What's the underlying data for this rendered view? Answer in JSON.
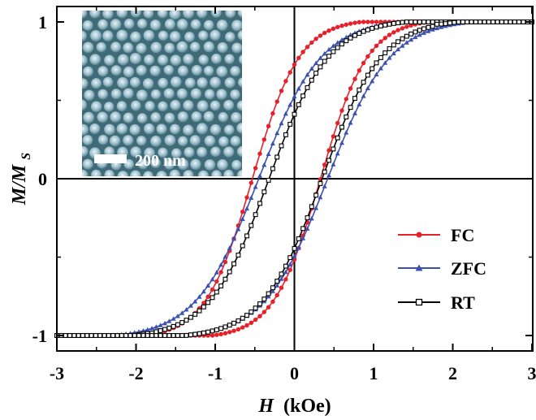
{
  "chart_data": {
    "type": "line",
    "xlabel": "H",
    "xlabel_unit": "(kOe)",
    "ylabel": "M/M",
    "ylabel_sub": "S",
    "xlim": [
      -3,
      3
    ],
    "ylim": [
      -1.05,
      1.05
    ],
    "x_ticks": [
      -3,
      -2,
      -1,
      0,
      1,
      2,
      3
    ],
    "x_tick_labels": [
      "-3",
      "-2",
      "-1",
      "0",
      "1",
      "2",
      "3"
    ],
    "y_ticks": [
      -1,
      0,
      1
    ],
    "y_tick_labels": [
      "-1",
      "0",
      "1"
    ],
    "zero_lines": true,
    "legend_placement": "right",
    "inset": {
      "scale_bar_label": "200 nm"
    },
    "series": [
      {
        "name": "FC",
        "color": "#e8202a",
        "marker": "circle",
        "coercivity_descending": -0.53,
        "coercivity_ascending": 0.33,
        "remanence": 0.62,
        "saturation_field": 1.95,
        "x": [
          -3.0,
          -2.0,
          -1.5,
          -1.0,
          -0.6,
          0.0,
          0.3,
          0.5,
          1.0,
          1.5,
          2.0,
          3.0
        ],
        "y_descending": [
          -0.98,
          -0.89,
          -0.74,
          -0.42,
          -0.05,
          0.62,
          0.8,
          0.87,
          0.95,
          0.985,
          1.0,
          1.0
        ],
        "y_ascending": [
          -1.0,
          -0.96,
          -0.9,
          -0.74,
          -0.55,
          -0.37,
          0.0,
          0.17,
          0.56,
          0.84,
          0.97,
          1.0
        ]
      },
      {
        "name": "ZFC",
        "color": "#3a50b4",
        "marker": "triangle",
        "coercivity_descending": -0.45,
        "coercivity_ascending": 0.42,
        "remanence": 0.5,
        "saturation_field": 2.15,
        "x": [
          -3.0,
          -2.0,
          -1.5,
          -1.0,
          -0.6,
          0.0,
          0.3,
          0.5,
          1.0,
          1.5,
          2.0,
          3.0
        ],
        "y_descending": [
          -0.99,
          -0.9,
          -0.77,
          -0.48,
          -0.13,
          0.5,
          0.72,
          0.82,
          0.93,
          0.97,
          0.99,
          1.0
        ],
        "y_ascending": [
          -1.0,
          -0.97,
          -0.92,
          -0.78,
          -0.6,
          -0.44,
          -0.08,
          0.12,
          0.5,
          0.79,
          0.95,
          1.0
        ]
      },
      {
        "name": "RT",
        "color": "#000000",
        "marker": "square-open",
        "coercivity_descending": -0.32,
        "coercivity_ascending": 0.35,
        "remanence": 0.42,
        "saturation_field": 1.75,
        "x": [
          -3.0,
          -2.0,
          -1.5,
          -1.0,
          -0.6,
          0.0,
          0.3,
          0.5,
          1.0,
          1.5,
          2.0,
          3.0
        ],
        "y_descending": [
          -0.99,
          -0.93,
          -0.83,
          -0.55,
          -0.22,
          0.42,
          0.7,
          0.82,
          0.95,
          0.99,
          1.0,
          1.0
        ],
        "y_ascending": [
          -1.0,
          -0.97,
          -0.93,
          -0.82,
          -0.63,
          -0.39,
          0.0,
          0.22,
          0.66,
          0.9,
          0.99,
          1.0
        ]
      }
    ]
  }
}
